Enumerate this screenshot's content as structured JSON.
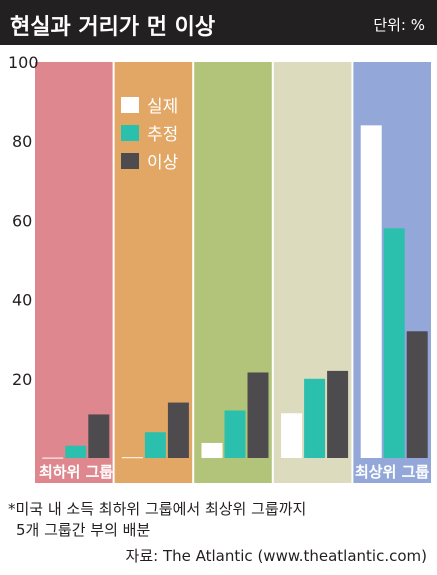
{
  "header": {
    "title": "현실과 거리가 먼 이상",
    "unit": "단위: %"
  },
  "chart_data": {
    "type": "bar",
    "categories": [
      "최하위 그룹",
      "",
      "",
      "",
      "최상위 그룹"
    ],
    "category_colors": [
      "#df878e",
      "#e2a764",
      "#b2c479",
      "#dcdbbd",
      "#93a8d9"
    ],
    "series": [
      {
        "name": "실제",
        "color": "#ffffff",
        "values": [
          0.1,
          0.2,
          3.8,
          11.3,
          84
        ]
      },
      {
        "name": "추정",
        "color": "#2bbfad",
        "values": [
          3.1,
          6.5,
          12.0,
          20.0,
          58
        ]
      },
      {
        "name": "이상",
        "color": "#4d4b4e",
        "values": [
          11.0,
          14.0,
          21.6,
          22.0,
          32
        ]
      }
    ],
    "y_ticks": [
      "20",
      "40",
      "60",
      "80",
      "100"
    ],
    "ylim": [
      0,
      100
    ],
    "legend": "top-left"
  },
  "footnote": {
    "line1": "*미국 내 소득 최하위 그룹에서 최상위 그룹까지",
    "line2": "5개 그룹간 부의 배분"
  },
  "source": "자료: The Atlantic (www.theatlantic.com)"
}
